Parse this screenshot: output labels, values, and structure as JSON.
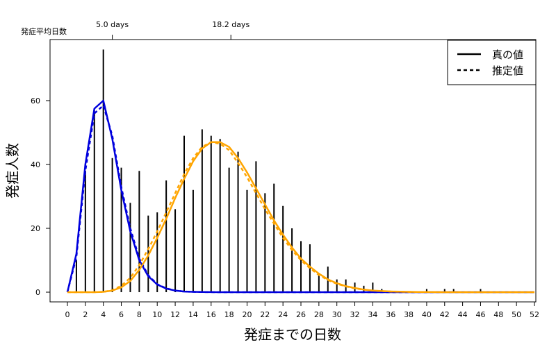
{
  "chart_data": {
    "type": "line",
    "title": "",
    "xlabel": "発症までの日数",
    "ylabel": "発症人数",
    "xlim": [
      0,
      52
    ],
    "ylim": [
      0,
      76
    ],
    "x_ticks": [
      0,
      2,
      4,
      6,
      8,
      10,
      12,
      14,
      16,
      18,
      20,
      22,
      24,
      26,
      28,
      30,
      32,
      34,
      36,
      38,
      40,
      42,
      44,
      46,
      48,
      50,
      52
    ],
    "y_ticks": [
      0,
      20,
      40,
      60
    ],
    "top_axis": {
      "label": "発症平均日数",
      "ticks": [
        {
          "x": 5.0,
          "label": "5.0 days"
        },
        {
          "x": 18.2,
          "label": "18.2 days"
        }
      ]
    },
    "grid": false,
    "legend": {
      "placement": "top-right",
      "entries": [
        {
          "label": "真の値",
          "style": "solid"
        },
        {
          "label": "推定値",
          "style": "dashed"
        }
      ]
    },
    "bars": {
      "x": [
        1,
        2,
        3,
        4,
        5,
        6,
        7,
        8,
        9,
        10,
        11,
        12,
        13,
        14,
        15,
        16,
        17,
        18,
        19,
        20,
        21,
        22,
        23,
        24,
        25,
        26,
        27,
        28,
        29,
        30,
        31,
        32,
        33,
        34,
        35,
        40,
        42,
        43,
        46
      ],
      "values": [
        10,
        38,
        57,
        76,
        42,
        39,
        28,
        38,
        24,
        25,
        35,
        26,
        49,
        32,
        51,
        49,
        48,
        39,
        44,
        32,
        41,
        31,
        34,
        27,
        20,
        16,
        15,
        6,
        8,
        4,
        4,
        3,
        2,
        3,
        1,
        1,
        1,
        1,
        1
      ]
    },
    "series": [
      {
        "color": "#0000dd",
        "style": "solid",
        "x": [
          0,
          1,
          2,
          3,
          4,
          5,
          6,
          7,
          8,
          9,
          10,
          11,
          12,
          13,
          14,
          15,
          16,
          17,
          18,
          19,
          20,
          52
        ],
        "values": [
          0,
          12,
          40,
          57.5,
          60,
          48,
          32,
          19,
          10,
          5,
          2.4,
          1.1,
          0.5,
          0.2,
          0.1,
          0.05,
          0.02,
          0,
          0,
          0,
          0,
          0
        ]
      },
      {
        "color": "#0000dd",
        "style": "dashed",
        "x": [
          0,
          1,
          2,
          3,
          4,
          5,
          6,
          7,
          8,
          9,
          10,
          11,
          12,
          13,
          14,
          15,
          16,
          17,
          18,
          19,
          20,
          52
        ],
        "values": [
          0,
          11,
          38,
          56,
          58.5,
          49,
          33,
          20,
          10.5,
          5.3,
          2.5,
          1.2,
          0.5,
          0.2,
          0.1,
          0.05,
          0.02,
          0,
          0,
          0,
          0,
          0
        ]
      },
      {
        "color": "#ffa500",
        "style": "solid",
        "x": [
          0,
          1,
          2,
          3,
          4,
          5,
          6,
          7,
          8,
          9,
          10,
          11,
          12,
          13,
          14,
          15,
          16,
          17,
          18,
          19,
          20,
          21,
          22,
          23,
          24,
          25,
          26,
          27,
          28,
          29,
          30,
          31,
          32,
          33,
          34,
          35,
          36,
          37,
          38,
          39,
          40,
          41,
          42,
          43,
          44,
          45,
          46,
          47,
          48,
          50,
          52
        ],
        "values": [
          0,
          0,
          0,
          0,
          0.1,
          0.5,
          1.5,
          3.5,
          7,
          11.5,
          17,
          23,
          29.5,
          35.5,
          41,
          45,
          47,
          47,
          45.5,
          42,
          37.5,
          32.5,
          27.5,
          22.5,
          18,
          14,
          10.5,
          8,
          5.8,
          4,
          2.8,
          1.9,
          1.3,
          0.8,
          0.5,
          0.35,
          0.22,
          0.15,
          0.1,
          0.06,
          0.04,
          0.02,
          0.01,
          0,
          0,
          0,
          0,
          0,
          0,
          0,
          0
        ]
      },
      {
        "color": "#ffa500",
        "style": "dashed",
        "x": [
          0,
          1,
          2,
          3,
          4,
          5,
          6,
          7,
          8,
          9,
          10,
          11,
          12,
          13,
          14,
          15,
          16,
          17,
          18,
          19,
          20,
          21,
          22,
          23,
          24,
          25,
          26,
          27,
          28,
          29,
          30,
          31,
          32,
          33,
          34,
          35,
          36,
          37,
          38,
          39,
          40,
          41,
          42,
          43,
          44,
          45,
          46,
          47,
          48,
          50,
          52
        ],
        "values": [
          0,
          0,
          0,
          0,
          0.1,
          0.6,
          2,
          4.5,
          8.5,
          13.5,
          19,
          25,
          31,
          37,
          42,
          45.5,
          47,
          46.5,
          44.5,
          40.5,
          36,
          31,
          26,
          21.5,
          17,
          13.2,
          10,
          7.5,
          5.4,
          3.8,
          2.6,
          1.8,
          1.2,
          0.8,
          0.5,
          0.3,
          0.2,
          0.13,
          0.08,
          0.05,
          0.03,
          0.02,
          0.01,
          0,
          0,
          0,
          0,
          0,
          0,
          0,
          0
        ]
      }
    ]
  }
}
